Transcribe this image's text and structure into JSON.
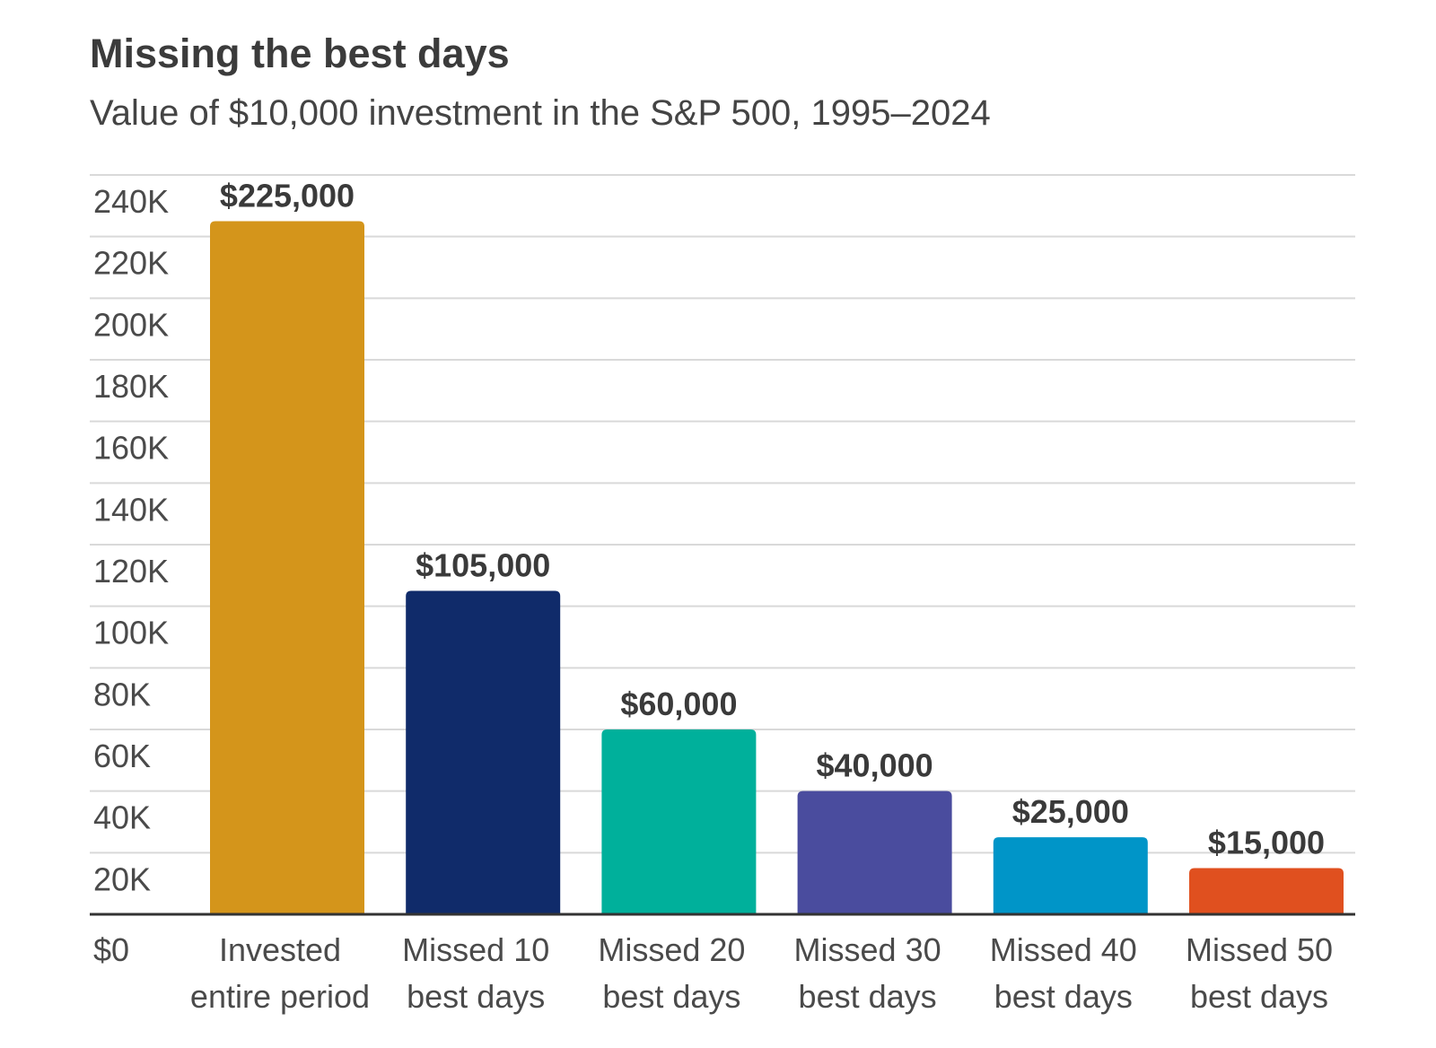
{
  "chart_data": {
    "type": "bar",
    "title": "Missing the best days",
    "subtitle": "Value of $10,000 investment in the S&P 500, 1995–2024",
    "xlabel": "",
    "ylabel": "",
    "ylim": [
      0,
      240000
    ],
    "yticks": [
      {
        "value": 0,
        "label": "$0"
      },
      {
        "value": 20000,
        "label": "20K"
      },
      {
        "value": 40000,
        "label": "40K"
      },
      {
        "value": 60000,
        "label": "60K"
      },
      {
        "value": 80000,
        "label": "80K"
      },
      {
        "value": 100000,
        "label": "100K"
      },
      {
        "value": 120000,
        "label": "120K"
      },
      {
        "value": 140000,
        "label": "140K"
      },
      {
        "value": 160000,
        "label": "160K"
      },
      {
        "value": 180000,
        "label": "180K"
      },
      {
        "value": 200000,
        "label": "200K"
      },
      {
        "value": 220000,
        "label": "220K"
      },
      {
        "value": 240000,
        "label": "240K"
      }
    ],
    "grid": true,
    "bars": [
      {
        "category": [
          "Invested",
          "entire period"
        ],
        "value": 225000,
        "label": "$225,000",
        "color": "#d4951b"
      },
      {
        "category": [
          "Missed 10",
          "best days"
        ],
        "value": 105000,
        "label": "$105,000",
        "color": "#102b6a"
      },
      {
        "category": [
          "Missed 20",
          "best days"
        ],
        "value": 60000,
        "label": "$60,000",
        "color": "#00b09b"
      },
      {
        "category": [
          "Missed 30",
          "best days"
        ],
        "value": 40000,
        "label": "$40,000",
        "color": "#4a4c9e"
      },
      {
        "category": [
          "Missed 40",
          "best days"
        ],
        "value": 25000,
        "label": "$25,000",
        "color": "#0095c8"
      },
      {
        "category": [
          "Missed 50",
          "best days"
        ],
        "value": 15000,
        "label": "$15,000",
        "color": "#e0501f"
      }
    ]
  }
}
